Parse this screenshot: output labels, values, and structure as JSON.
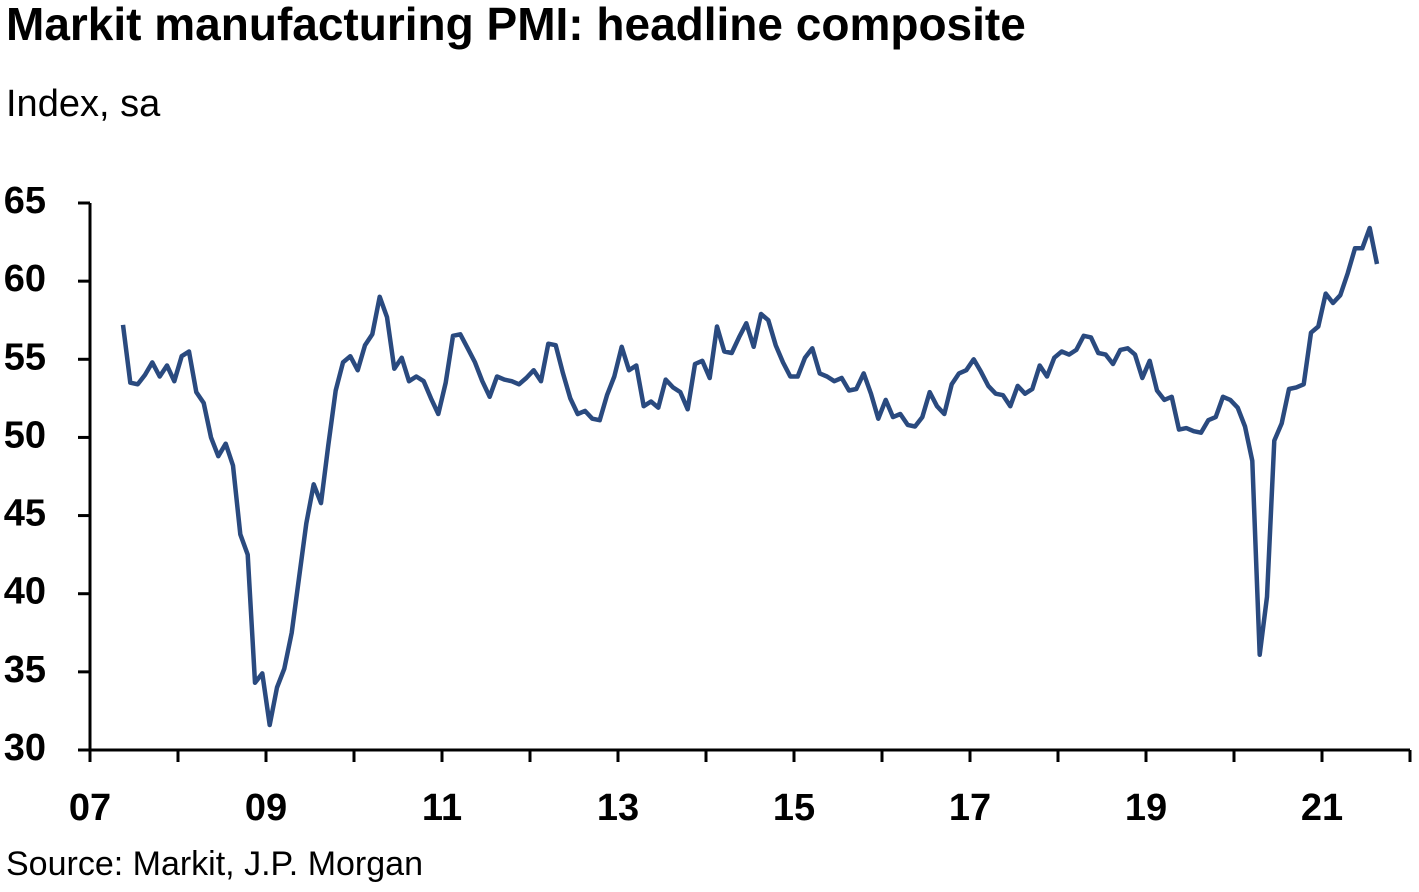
{
  "chart_data": {
    "type": "line",
    "title": "Markit manufacturing PMI: headline composite",
    "subtitle": "Index, sa",
    "source": "Source: Markit, J.P. Morgan",
    "x": [
      2007.375,
      2007.458,
      2007.542,
      2007.625,
      2007.708,
      2007.792,
      2007.875,
      2007.958,
      2008.042,
      2008.125,
      2008.208,
      2008.292,
      2008.375,
      2008.458,
      2008.542,
      2008.625,
      2008.708,
      2008.792,
      2008.875,
      2008.958,
      2009.042,
      2009.125,
      2009.208,
      2009.292,
      2009.375,
      2009.458,
      2009.542,
      2009.625,
      2009.708,
      2009.792,
      2009.875,
      2009.958,
      2010.042,
      2010.125,
      2010.208,
      2010.292,
      2010.375,
      2010.458,
      2010.542,
      2010.625,
      2010.708,
      2010.792,
      2010.875,
      2010.958,
      2011.042,
      2011.125,
      2011.208,
      2011.292,
      2011.375,
      2011.458,
      2011.542,
      2011.625,
      2011.708,
      2011.792,
      2011.875,
      2011.958,
      2012.042,
      2012.125,
      2012.208,
      2012.292,
      2012.375,
      2012.458,
      2012.542,
      2012.625,
      2012.708,
      2012.792,
      2012.875,
      2012.958,
      2013.042,
      2013.125,
      2013.208,
      2013.292,
      2013.375,
      2013.458,
      2013.542,
      2013.625,
      2013.708,
      2013.792,
      2013.875,
      2013.958,
      2014.042,
      2014.125,
      2014.208,
      2014.292,
      2014.375,
      2014.458,
      2014.542,
      2014.625,
      2014.708,
      2014.792,
      2014.875,
      2014.958,
      2015.042,
      2015.125,
      2015.208,
      2015.292,
      2015.375,
      2015.458,
      2015.542,
      2015.625,
      2015.708,
      2015.792,
      2015.875,
      2015.958,
      2016.042,
      2016.125,
      2016.208,
      2016.292,
      2016.375,
      2016.458,
      2016.542,
      2016.625,
      2016.708,
      2016.792,
      2016.875,
      2016.958,
      2017.042,
      2017.125,
      2017.208,
      2017.292,
      2017.375,
      2017.458,
      2017.542,
      2017.625,
      2017.708,
      2017.792,
      2017.875,
      2017.958,
      2018.042,
      2018.125,
      2018.208,
      2018.292,
      2018.375,
      2018.458,
      2018.542,
      2018.625,
      2018.708,
      2018.792,
      2018.875,
      2018.958,
      2019.042,
      2019.125,
      2019.208,
      2019.292,
      2019.375,
      2019.458,
      2019.542,
      2019.625,
      2019.708,
      2019.792,
      2019.875,
      2019.958,
      2020.042,
      2020.125,
      2020.208,
      2020.292,
      2020.375,
      2020.458,
      2020.542,
      2020.625,
      2020.708,
      2020.792,
      2020.875,
      2020.958,
      2021.042,
      2021.125,
      2021.208,
      2021.292,
      2021.375,
      2021.458,
      2021.542,
      2021.625
    ],
    "series": [
      {
        "color": "#2a4a7f",
        "values": [
          57.2,
          53.5,
          53.4,
          54.0,
          54.8,
          53.9,
          54.6,
          53.6,
          55.2,
          55.5,
          52.9,
          52.2,
          50.0,
          48.8,
          49.6,
          48.2,
          43.8,
          42.5,
          34.3,
          34.9,
          31.6,
          34.0,
          35.2,
          37.5,
          41.0,
          44.5,
          47.0,
          45.8,
          49.5,
          53.0,
          54.8,
          55.2,
          54.3,
          55.9,
          56.6,
          59.0,
          57.7,
          54.4,
          55.1,
          53.6,
          53.9,
          53.6,
          52.5,
          51.5,
          53.5,
          56.5,
          56.6,
          55.7,
          54.8,
          53.6,
          52.6,
          53.9,
          53.7,
          53.6,
          53.4,
          53.8,
          54.3,
          53.6,
          56.0,
          55.9,
          54.1,
          52.5,
          51.5,
          51.7,
          51.2,
          51.1,
          52.7,
          53.9,
          55.8,
          54.3,
          54.6,
          52.0,
          52.3,
          51.9,
          53.7,
          53.2,
          52.9,
          51.8,
          54.7,
          54.9,
          53.8,
          57.1,
          55.5,
          55.4,
          56.4,
          57.3,
          55.8,
          57.9,
          57.5,
          55.9,
          54.8,
          53.9,
          53.9,
          55.1,
          55.7,
          54.1,
          53.9,
          53.6,
          53.8,
          53.0,
          53.1,
          54.1,
          52.8,
          51.2,
          52.4,
          51.3,
          51.5,
          50.8,
          50.7,
          51.3,
          52.9,
          52.0,
          51.5,
          53.4,
          54.1,
          54.3,
          55.0,
          54.2,
          53.3,
          52.8,
          52.7,
          52.0,
          53.3,
          52.8,
          53.1,
          54.6,
          53.9,
          55.1,
          55.5,
          55.3,
          55.6,
          56.5,
          56.4,
          55.4,
          55.3,
          54.7,
          55.6,
          55.7,
          55.3,
          53.8,
          54.9,
          53.0,
          52.4,
          52.6,
          50.5,
          50.6,
          50.4,
          50.3,
          51.1,
          51.3,
          52.6,
          52.4,
          51.9,
          50.7,
          48.5,
          36.1,
          39.8,
          49.8,
          50.9,
          53.1,
          53.2,
          53.4,
          56.7,
          57.1,
          59.2,
          58.6,
          59.1,
          60.5,
          62.1,
          62.1,
          63.4,
          61.1
        ]
      }
    ],
    "xlim": [
      2007,
      2022
    ],
    "xticks": [
      {
        "value": 2007,
        "label": "07"
      },
      {
        "value": 2009,
        "label": "09"
      },
      {
        "value": 2011,
        "label": "11"
      },
      {
        "value": 2013,
        "label": "13"
      },
      {
        "value": 2015,
        "label": "15"
      },
      {
        "value": 2017,
        "label": "17"
      },
      {
        "value": 2019,
        "label": "19"
      },
      {
        "value": 2021,
        "label": "21"
      }
    ],
    "minor_xticks": [
      2008,
      2010,
      2012,
      2014,
      2016,
      2018,
      2020,
      2022
    ],
    "ylim": [
      30,
      65
    ],
    "yticks": [
      30,
      35,
      40,
      45,
      50,
      55,
      60,
      65
    ],
    "grid": false
  }
}
